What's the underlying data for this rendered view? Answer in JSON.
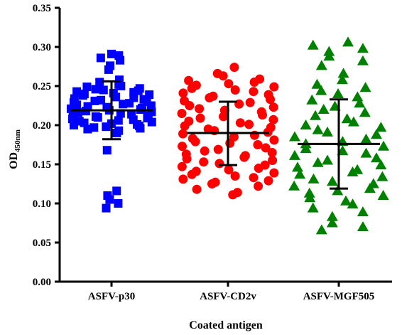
{
  "chart_data": {
    "type": "scatter",
    "title": "",
    "xlabel": "Coated antigen",
    "ylabel": {
      "main": "OD",
      "subscript": "450nm"
    },
    "ylim": [
      0,
      0.35
    ],
    "yticks": [
      "0.00",
      "0.05",
      "0.10",
      "0.15",
      "0.20",
      "0.25",
      "0.30",
      "0.35"
    ],
    "grid": false,
    "categories": [
      "ASFV-p30",
      "ASFV-CD2v",
      "ASFV-MGF505"
    ],
    "series": [
      {
        "category": "ASFV-p30",
        "marker": "square",
        "color": "#0000ff",
        "mean": 0.219,
        "sd_low": 0.182,
        "sd_high": 0.256,
        "values": [
          0.291,
          0.289,
          0.286,
          0.283,
          0.276,
          0.271,
          0.258,
          0.255,
          0.252,
          0.25,
          0.249,
          0.247,
          0.246,
          0.245,
          0.244,
          0.243,
          0.242,
          0.241,
          0.24,
          0.239,
          0.238,
          0.236,
          0.235,
          0.234,
          0.233,
          0.232,
          0.231,
          0.23,
          0.229,
          0.228,
          0.227,
          0.226,
          0.225,
          0.224,
          0.223,
          0.222,
          0.221,
          0.22,
          0.219,
          0.218,
          0.217,
          0.216,
          0.215,
          0.214,
          0.213,
          0.212,
          0.211,
          0.21,
          0.209,
          0.208,
          0.207,
          0.206,
          0.205,
          0.204,
          0.203,
          0.202,
          0.201,
          0.2,
          0.199,
          0.198,
          0.197,
          0.196,
          0.195,
          0.193,
          0.19,
          0.168,
          0.116,
          0.11,
          0.105,
          0.1,
          0.094
        ]
      },
      {
        "category": "ASFV-CD2v",
        "marker": "circle",
        "color": "#ff0000",
        "mean": 0.19,
        "sd_low": 0.149,
        "sd_high": 0.23,
        "values": [
          0.274,
          0.266,
          0.263,
          0.259,
          0.257,
          0.255,
          0.253,
          0.251,
          0.249,
          0.247,
          0.245,
          0.243,
          0.241,
          0.239,
          0.237,
          0.235,
          0.233,
          0.231,
          0.229,
          0.227,
          0.225,
          0.223,
          0.221,
          0.219,
          0.217,
          0.215,
          0.213,
          0.211,
          0.209,
          0.207,
          0.205,
          0.203,
          0.201,
          0.199,
          0.197,
          0.195,
          0.193,
          0.191,
          0.189,
          0.187,
          0.185,
          0.183,
          0.181,
          0.179,
          0.177,
          0.175,
          0.173,
          0.171,
          0.169,
          0.167,
          0.165,
          0.163,
          0.161,
          0.159,
          0.157,
          0.155,
          0.153,
          0.151,
          0.149,
          0.147,
          0.145,
          0.143,
          0.141,
          0.139,
          0.137,
          0.135,
          0.133,
          0.131,
          0.129,
          0.127,
          0.125,
          0.122,
          0.118,
          0.114,
          0.111
        ]
      },
      {
        "category": "ASFV-MGF505",
        "marker": "triangle",
        "color": "#008000",
        "mean": 0.176,
        "sd_low": 0.119,
        "sd_high": 0.233,
        "values": [
          0.306,
          0.302,
          0.298,
          0.294,
          0.288,
          0.282,
          0.276,
          0.266,
          0.258,
          0.252,
          0.248,
          0.244,
          0.24,
          0.236,
          0.232,
          0.228,
          0.224,
          0.22,
          0.216,
          0.212,
          0.208,
          0.204,
          0.2,
          0.197,
          0.194,
          0.191,
          0.188,
          0.185,
          0.182,
          0.179,
          0.176,
          0.173,
          0.17,
          0.167,
          0.164,
          0.161,
          0.158,
          0.155,
          0.152,
          0.149,
          0.146,
          0.143,
          0.14,
          0.137,
          0.134,
          0.131,
          0.128,
          0.125,
          0.122,
          0.119,
          0.116,
          0.113,
          0.11,
          0.107,
          0.103,
          0.099,
          0.094,
          0.089,
          0.083,
          0.075,
          0.07,
          0.066
        ]
      }
    ]
  }
}
